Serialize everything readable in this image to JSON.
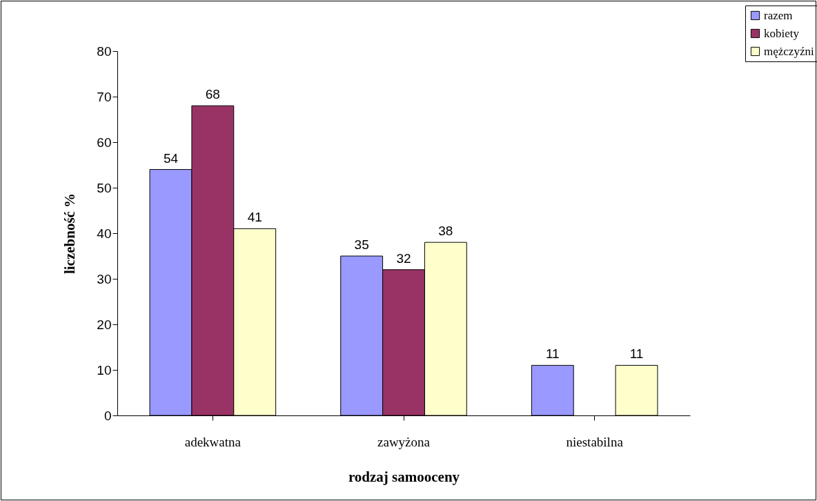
{
  "chart_data": {
    "type": "bar",
    "xlabel": "rodzaj samooceny",
    "ylabel": "liczebność %",
    "categories": [
      "adekwatna",
      "zawyżona",
      "niestabilna"
    ],
    "series": [
      {
        "name": "razem",
        "color": "#9999ff",
        "values": [
          54,
          35,
          11
        ]
      },
      {
        "name": "kobiety",
        "color": "#993366",
        "values": [
          68,
          32,
          null
        ]
      },
      {
        "name": "mężczyźni",
        "color": "#ffffcc",
        "values": [
          41,
          38,
          11
        ]
      }
    ],
    "ylim": [
      0,
      80
    ],
    "yticks": [
      0,
      10,
      20,
      30,
      40,
      50,
      60,
      70,
      80
    ],
    "grid": false,
    "legend": "top right",
    "data_labels": true
  }
}
